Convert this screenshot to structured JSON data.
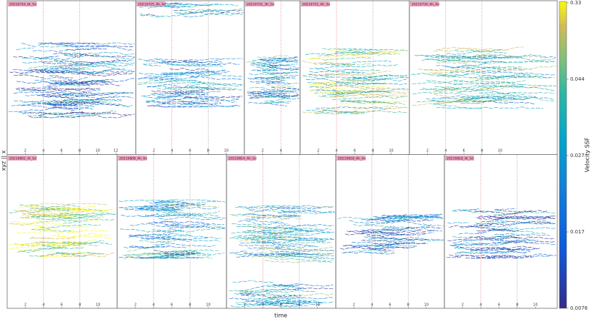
{
  "panels": [
    {
      "label": "20210716_6t_5d",
      "xlim": [
        0,
        14.2
      ],
      "xticks": [
        2,
        4,
        6,
        8,
        10,
        12
      ]
    },
    {
      "label": "20210725_4h_4d",
      "xlim": [
        0,
        12
      ],
      "xticks": [
        2,
        4,
        6,
        8,
        10
      ]
    },
    {
      "label": "20210731_3h_5d",
      "xlim": [
        0,
        6.1
      ],
      "xticks": [
        2,
        4
      ]
    },
    {
      "label": "20210725_4h_3d",
      "xlim": [
        0,
        12
      ],
      "xticks": [
        2,
        4,
        6,
        8,
        10
      ]
    },
    {
      "label": "20210730_4h_4d",
      "xlim": [
        0,
        16.3
      ],
      "xticks": [
        2,
        4,
        6,
        8,
        10
      ]
    },
    {
      "label": "20210802_4t_5d",
      "xlim": [
        0,
        12.1
      ],
      "xticks": [
        2,
        4,
        6,
        8,
        10
      ]
    },
    {
      "label": "20210808_4h_4d",
      "xlim": [
        0,
        12
      ],
      "xticks": [
        2,
        4,
        6,
        8,
        10
      ]
    },
    {
      "label": "20210814_4h_5d",
      "xlim": [
        0,
        12
      ],
      "xticks": [
        2,
        4,
        6,
        8,
        10
      ]
    },
    {
      "label": "20210818_4h_4d",
      "xlim": [
        0,
        12
      ],
      "xticks": [
        2,
        4,
        6,
        8,
        10
      ]
    },
    {
      "label": "20210818_4t_5d",
      "xlim": [
        0,
        12.4
      ],
      "xticks": [
        2,
        4,
        6,
        8,
        10
      ]
    }
  ],
  "x_label": "time",
  "y_label": "xyz || x",
  "colorbar": {
    "label": "Velocity SSF",
    "ticks": [
      0.33,
      0.044,
      0.027,
      0.017,
      0.0076
    ]
  }
}
